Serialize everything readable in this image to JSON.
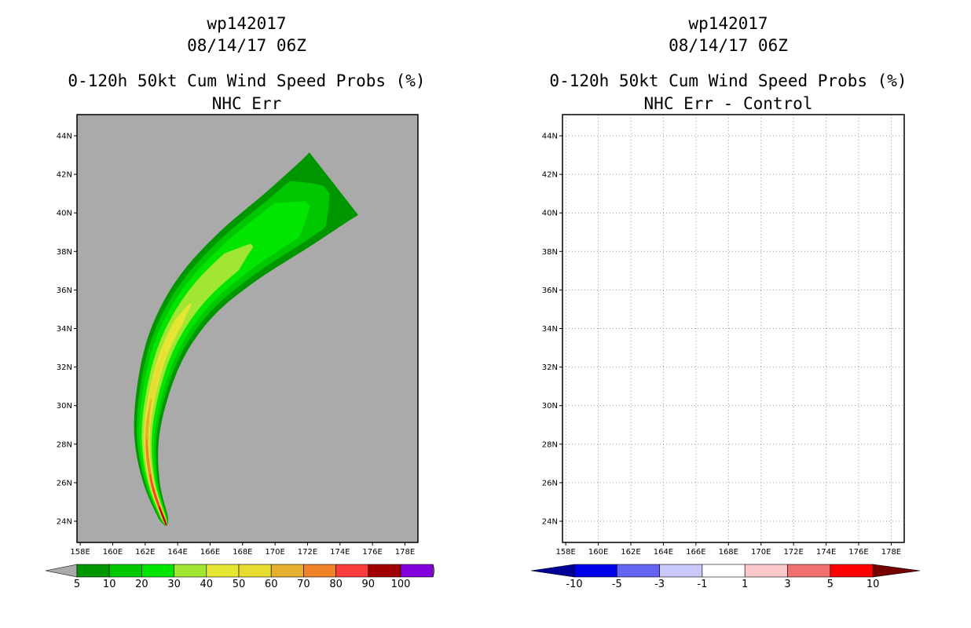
{
  "panels": [
    {
      "id": "left",
      "storm": "wp142017",
      "datetime": "08/14/17 06Z",
      "title": "0-120h 50kt Cum Wind Speed Probs (%)",
      "subtitle": "NHC Err",
      "background": "#aaaaaa"
    },
    {
      "id": "right",
      "storm": "wp142017",
      "datetime": "08/14/17 06Z",
      "title": "0-120h 50kt Cum Wind Speed Probs (%)",
      "subtitle": "NHC Err - Control",
      "background": "#ffffff"
    }
  ],
  "chart_data": [
    {
      "type": "heatmap",
      "panel": "left",
      "title": "0-120h 50kt Cum Wind Speed Probs (%)",
      "subtitle": "NHC Err",
      "x_ticks": [
        "158E",
        "160E",
        "162E",
        "164E",
        "166E",
        "168E",
        "170E",
        "172E",
        "174E",
        "176E",
        "178E"
      ],
      "y_ticks": [
        "24N",
        "26N",
        "28N",
        "30N",
        "32N",
        "34N",
        "36N",
        "38N",
        "40N",
        "42N",
        "44N"
      ],
      "xlim_deg_east": [
        157.8,
        178.8
      ],
      "ylim_deg_north": [
        22.9,
        45.1
      ],
      "grid": false,
      "colorbar": {
        "labels": [
          "5",
          "10",
          "20",
          "30",
          "40",
          "50",
          "60",
          "70",
          "80",
          "90",
          "100"
        ],
        "colors": [
          "#009600",
          "#00c800",
          "#00e600",
          "#a0e632",
          "#e6e632",
          "#e6dc32",
          "#e6af2d",
          "#f08228",
          "#fa3c3c",
          "#a00000",
          "#8200dc"
        ],
        "under_color": "#aaaaaa",
        "over_color": "#aaaaaa"
      },
      "swath_track": {
        "lon": [
          163.3,
          162.4,
          162.1,
          162.6,
          163.6,
          165.3,
          167.8,
          171.0,
          173.6
        ],
        "lat": [
          23.8,
          26.0,
          28.5,
          31.2,
          33.6,
          35.8,
          37.8,
          39.8,
          41.5
        ]
      },
      "contour_levels": [
        5,
        10,
        20,
        30,
        40,
        50,
        60,
        70,
        80,
        90
      ]
    },
    {
      "type": "heatmap",
      "panel": "right",
      "title": "0-120h 50kt Cum Wind Speed Probs (%)",
      "subtitle": "NHC Err - Control",
      "x_ticks": [
        "158E",
        "160E",
        "162E",
        "164E",
        "166E",
        "168E",
        "170E",
        "172E",
        "174E",
        "176E",
        "178E"
      ],
      "y_ticks": [
        "24N",
        "26N",
        "28N",
        "30N",
        "32N",
        "34N",
        "36N",
        "38N",
        "40N",
        "42N",
        "44N"
      ],
      "xlim_deg_east": [
        157.8,
        178.8
      ],
      "ylim_deg_north": [
        22.9,
        45.1
      ],
      "grid": true,
      "colorbar": {
        "labels": [
          "-10",
          "-5",
          "-3",
          "-1",
          "1",
          "3",
          "5",
          "10"
        ],
        "colors": [
          "#0000e6",
          "#6464f0",
          "#c8c8fa",
          "#ffffff",
          "#fac8c8",
          "#f07070",
          "#ff0000"
        ],
        "under_color": "#000096",
        "over_color": "#780000"
      },
      "values": "all zero (no difference)"
    }
  ]
}
